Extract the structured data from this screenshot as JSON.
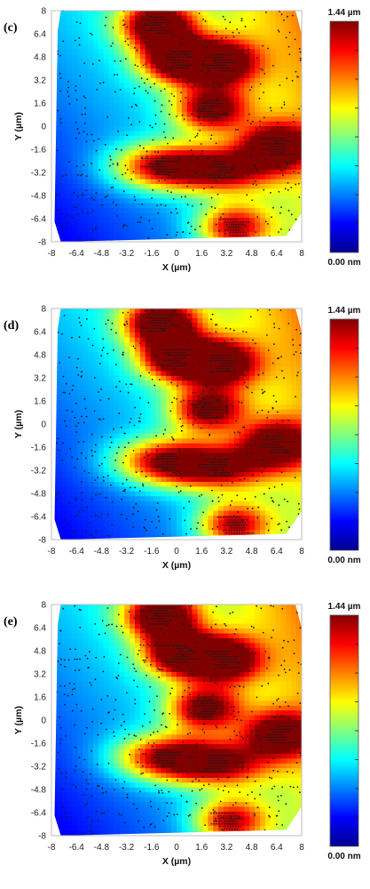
{
  "colorbar": {
    "max_label": "1.44 µm",
    "min_label": "0.00 nm",
    "colors": [
      "#00008f",
      "#0000ff",
      "#0080ff",
      "#00ffff",
      "#80ff80",
      "#ffff00",
      "#ff8000",
      "#ff0000",
      "#800000"
    ]
  },
  "chart_data": [
    {
      "type": "heatmap",
      "panel_label": "(c)",
      "xlabel": "X (µm)",
      "ylabel": "Y (µm)",
      "xlim": [
        -8,
        8
      ],
      "ylim": [
        -8,
        8
      ],
      "x_ticks": [
        "-8",
        "-6.4",
        "-4.8",
        "-3.2",
        "-1.6",
        "0",
        "1.6",
        "3.2",
        "4.8",
        "6.4",
        "8"
      ],
      "y_ticks": [
        "8",
        "6.4",
        "4.8",
        "3.2",
        "1.6",
        "0",
        "-1.6",
        "-3.2",
        "-4.8",
        "-6.4",
        "-8"
      ],
      "value_range_um": [
        0,
        1.44
      ],
      "peaks": [
        {
          "x": -1.2,
          "y": 7.0,
          "height_um": 1.4
        },
        {
          "x": 0.0,
          "y": 4.6,
          "height_um": 1.35
        },
        {
          "x": 2.8,
          "y": 4.4,
          "height_um": 1.3
        },
        {
          "x": 2.2,
          "y": 1.2,
          "height_um": 1.15
        },
        {
          "x": 6.4,
          "y": -1.4,
          "height_um": 1.2
        },
        {
          "x": -1.0,
          "y": -2.8,
          "height_um": 1.05
        },
        {
          "x": 2.8,
          "y": -3.0,
          "height_um": 1.05
        },
        {
          "x": 3.6,
          "y": -7.0,
          "height_um": 1.0
        }
      ]
    },
    {
      "type": "heatmap",
      "panel_label": "(d)",
      "xlabel": "X (µm)",
      "ylabel": "Y (µm)",
      "xlim": [
        -8,
        8
      ],
      "ylim": [
        -8,
        8
      ],
      "x_ticks": [
        "-8",
        "-6.4",
        "-4.8",
        "-3.2",
        "-1.6",
        "0",
        "1.6",
        "3.2",
        "4.8",
        "6.4",
        "8"
      ],
      "y_ticks": [
        "8",
        "6.4",
        "4.8",
        "3.2",
        "1.6",
        "0",
        "-1.6",
        "-3.2",
        "-4.8",
        "-6.4",
        "-8"
      ],
      "value_range_um": [
        0,
        1.44
      ],
      "peaks": [
        {
          "x": -1.0,
          "y": 7.0,
          "height_um": 1.4
        },
        {
          "x": 0.0,
          "y": 4.6,
          "height_um": 1.35
        },
        {
          "x": 2.8,
          "y": 4.2,
          "height_um": 1.3
        },
        {
          "x": 2.0,
          "y": 1.0,
          "height_um": 1.15
        },
        {
          "x": 6.4,
          "y": -1.4,
          "height_um": 1.15
        },
        {
          "x": -0.8,
          "y": -2.6,
          "height_um": 1.05
        },
        {
          "x": 2.6,
          "y": -3.0,
          "height_um": 1.0
        },
        {
          "x": 3.6,
          "y": -7.0,
          "height_um": 1.0
        }
      ]
    },
    {
      "type": "heatmap",
      "panel_label": "(e)",
      "xlabel": "X (µm)",
      "ylabel": "Y (µm)",
      "xlim": [
        -8,
        8
      ],
      "ylim": [
        -8,
        8
      ],
      "x_ticks": [
        "-8",
        "-6.4",
        "-4.8",
        "-3.2",
        "-1.6",
        "0",
        "1.6",
        "3.2",
        "4.8",
        "6.4",
        "8"
      ],
      "y_ticks": [
        "8",
        "6.4",
        "4.8",
        "3.2",
        "1.6",
        "0",
        "-1.6",
        "-3.2",
        "-4.8",
        "-6.4",
        "-8"
      ],
      "value_range_um": [
        0,
        1.44
      ],
      "peaks": [
        {
          "x": -1.0,
          "y": 7.2,
          "height_um": 1.4
        },
        {
          "x": 0.2,
          "y": 4.6,
          "height_um": 1.35
        },
        {
          "x": 3.0,
          "y": 4.2,
          "height_um": 1.3
        },
        {
          "x": 1.8,
          "y": 0.8,
          "height_um": 1.15
        },
        {
          "x": 6.6,
          "y": -1.0,
          "height_um": 1.1
        },
        {
          "x": -0.8,
          "y": -2.6,
          "height_um": 1.05
        },
        {
          "x": 2.6,
          "y": -3.0,
          "height_um": 1.0
        },
        {
          "x": 3.4,
          "y": -7.0,
          "height_um": 1.0
        }
      ]
    }
  ]
}
